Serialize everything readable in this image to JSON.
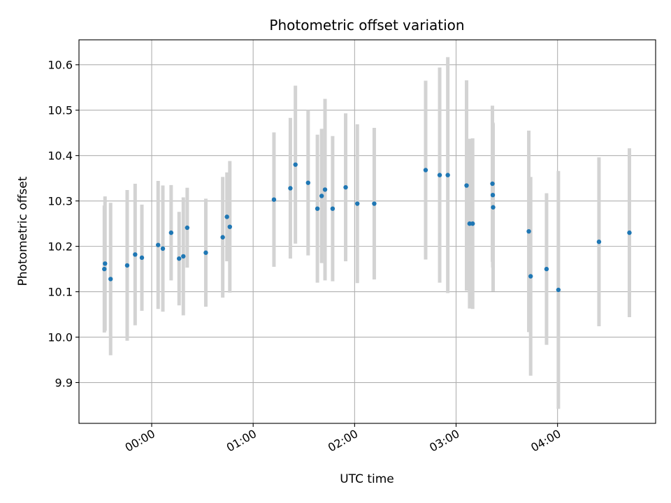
{
  "chart_data": {
    "type": "scatter",
    "title": "Photometric offset variation",
    "xlabel": "UTC time",
    "ylabel": "Photometric offset",
    "x_unit": "minutes since 00:00 UTC",
    "xlim": [
      -43,
      298
    ],
    "ylim": [
      9.81,
      10.655
    ],
    "grid": true,
    "xticks": [
      {
        "value": 0,
        "label": "00:00"
      },
      {
        "value": 60,
        "label": "01:00"
      },
      {
        "value": 120,
        "label": "02:00"
      },
      {
        "value": 180,
        "label": "03:00"
      },
      {
        "value": 240,
        "label": "04:00"
      }
    ],
    "yticks": [
      {
        "value": 9.9,
        "label": "9.9"
      },
      {
        "value": 10.0,
        "label": "10.0"
      },
      {
        "value": 10.1,
        "label": "10.1"
      },
      {
        "value": 10.2,
        "label": "10.2"
      },
      {
        "value": 10.3,
        "label": "10.3"
      },
      {
        "value": 10.4,
        "label": "10.4"
      },
      {
        "value": 10.5,
        "label": "10.5"
      },
      {
        "value": 10.6,
        "label": "10.6"
      }
    ],
    "colors": {
      "point": "#1f77b4",
      "errorbar": "#d3d3d3",
      "grid": "#b0b0b0"
    },
    "points": [
      {
        "x": -28.0,
        "y": 10.15,
        "err": 0.14
      },
      {
        "x": -27.6,
        "y": 10.162,
        "err": 0.148
      },
      {
        "x": -24.3,
        "y": 10.128,
        "err": 0.168
      },
      {
        "x": -14.5,
        "y": 10.158,
        "err": 0.166
      },
      {
        "x": -9.8,
        "y": 10.182,
        "err": 0.156
      },
      {
        "x": -5.8,
        "y": 10.175,
        "err": 0.117
      },
      {
        "x": 3.8,
        "y": 10.203,
        "err": 0.141
      },
      {
        "x": 6.6,
        "y": 10.195,
        "err": 0.139
      },
      {
        "x": 11.5,
        "y": 10.23,
        "err": 0.105
      },
      {
        "x": 16.2,
        "y": 10.173,
        "err": 0.103
      },
      {
        "x": 18.7,
        "y": 10.178,
        "err": 0.13
      },
      {
        "x": 21.0,
        "y": 10.241,
        "err": 0.088
      },
      {
        "x": 32.0,
        "y": 10.186,
        "err": 0.119
      },
      {
        "x": 42.0,
        "y": 10.22,
        "err": 0.133
      },
      {
        "x": 44.5,
        "y": 10.265,
        "err": 0.098
      },
      {
        "x": 46.2,
        "y": 10.243,
        "err": 0.145
      },
      {
        "x": 72.3,
        "y": 10.303,
        "err": 0.148
      },
      {
        "x": 82.0,
        "y": 10.328,
        "err": 0.155
      },
      {
        "x": 85.0,
        "y": 10.38,
        "err": 0.174
      },
      {
        "x": 92.5,
        "y": 10.34,
        "err": 0.16
      },
      {
        "x": 98.0,
        "y": 10.283,
        "err": 0.163
      },
      {
        "x": 100.5,
        "y": 10.311,
        "err": 0.148
      },
      {
        "x": 102.5,
        "y": 10.325,
        "err": 0.2
      },
      {
        "x": 107.0,
        "y": 10.283,
        "err": 0.16
      },
      {
        "x": 114.7,
        "y": 10.33,
        "err": 0.163
      },
      {
        "x": 121.6,
        "y": 10.294,
        "err": 0.175
      },
      {
        "x": 131.6,
        "y": 10.294,
        "err": 0.167
      },
      {
        "x": 162.0,
        "y": 10.368,
        "err": 0.197
      },
      {
        "x": 170.3,
        "y": 10.357,
        "err": 0.237
      },
      {
        "x": 175.1,
        "y": 10.357,
        "err": 0.26
      },
      {
        "x": 186.2,
        "y": 10.334,
        "err": 0.232
      },
      {
        "x": 188.0,
        "y": 10.25,
        "err": 0.187
      },
      {
        "x": 189.8,
        "y": 10.25,
        "err": 0.188
      },
      {
        "x": 201.5,
        "y": 10.338,
        "err": 0.172
      },
      {
        "x": 201.7,
        "y": 10.313,
        "err": 0.16
      },
      {
        "x": 201.9,
        "y": 10.286,
        "err": 0.185
      },
      {
        "x": 223.0,
        "y": 10.233,
        "err": 0.222
      },
      {
        "x": 224.1,
        "y": 10.134,
        "err": 0.219
      },
      {
        "x": 233.5,
        "y": 10.15,
        "err": 0.167
      },
      {
        "x": 240.5,
        "y": 10.104,
        "err": 0.262
      },
      {
        "x": 264.5,
        "y": 10.21,
        "err": 0.186
      },
      {
        "x": 282.5,
        "y": 10.23,
        "err": 0.186
      }
    ]
  }
}
